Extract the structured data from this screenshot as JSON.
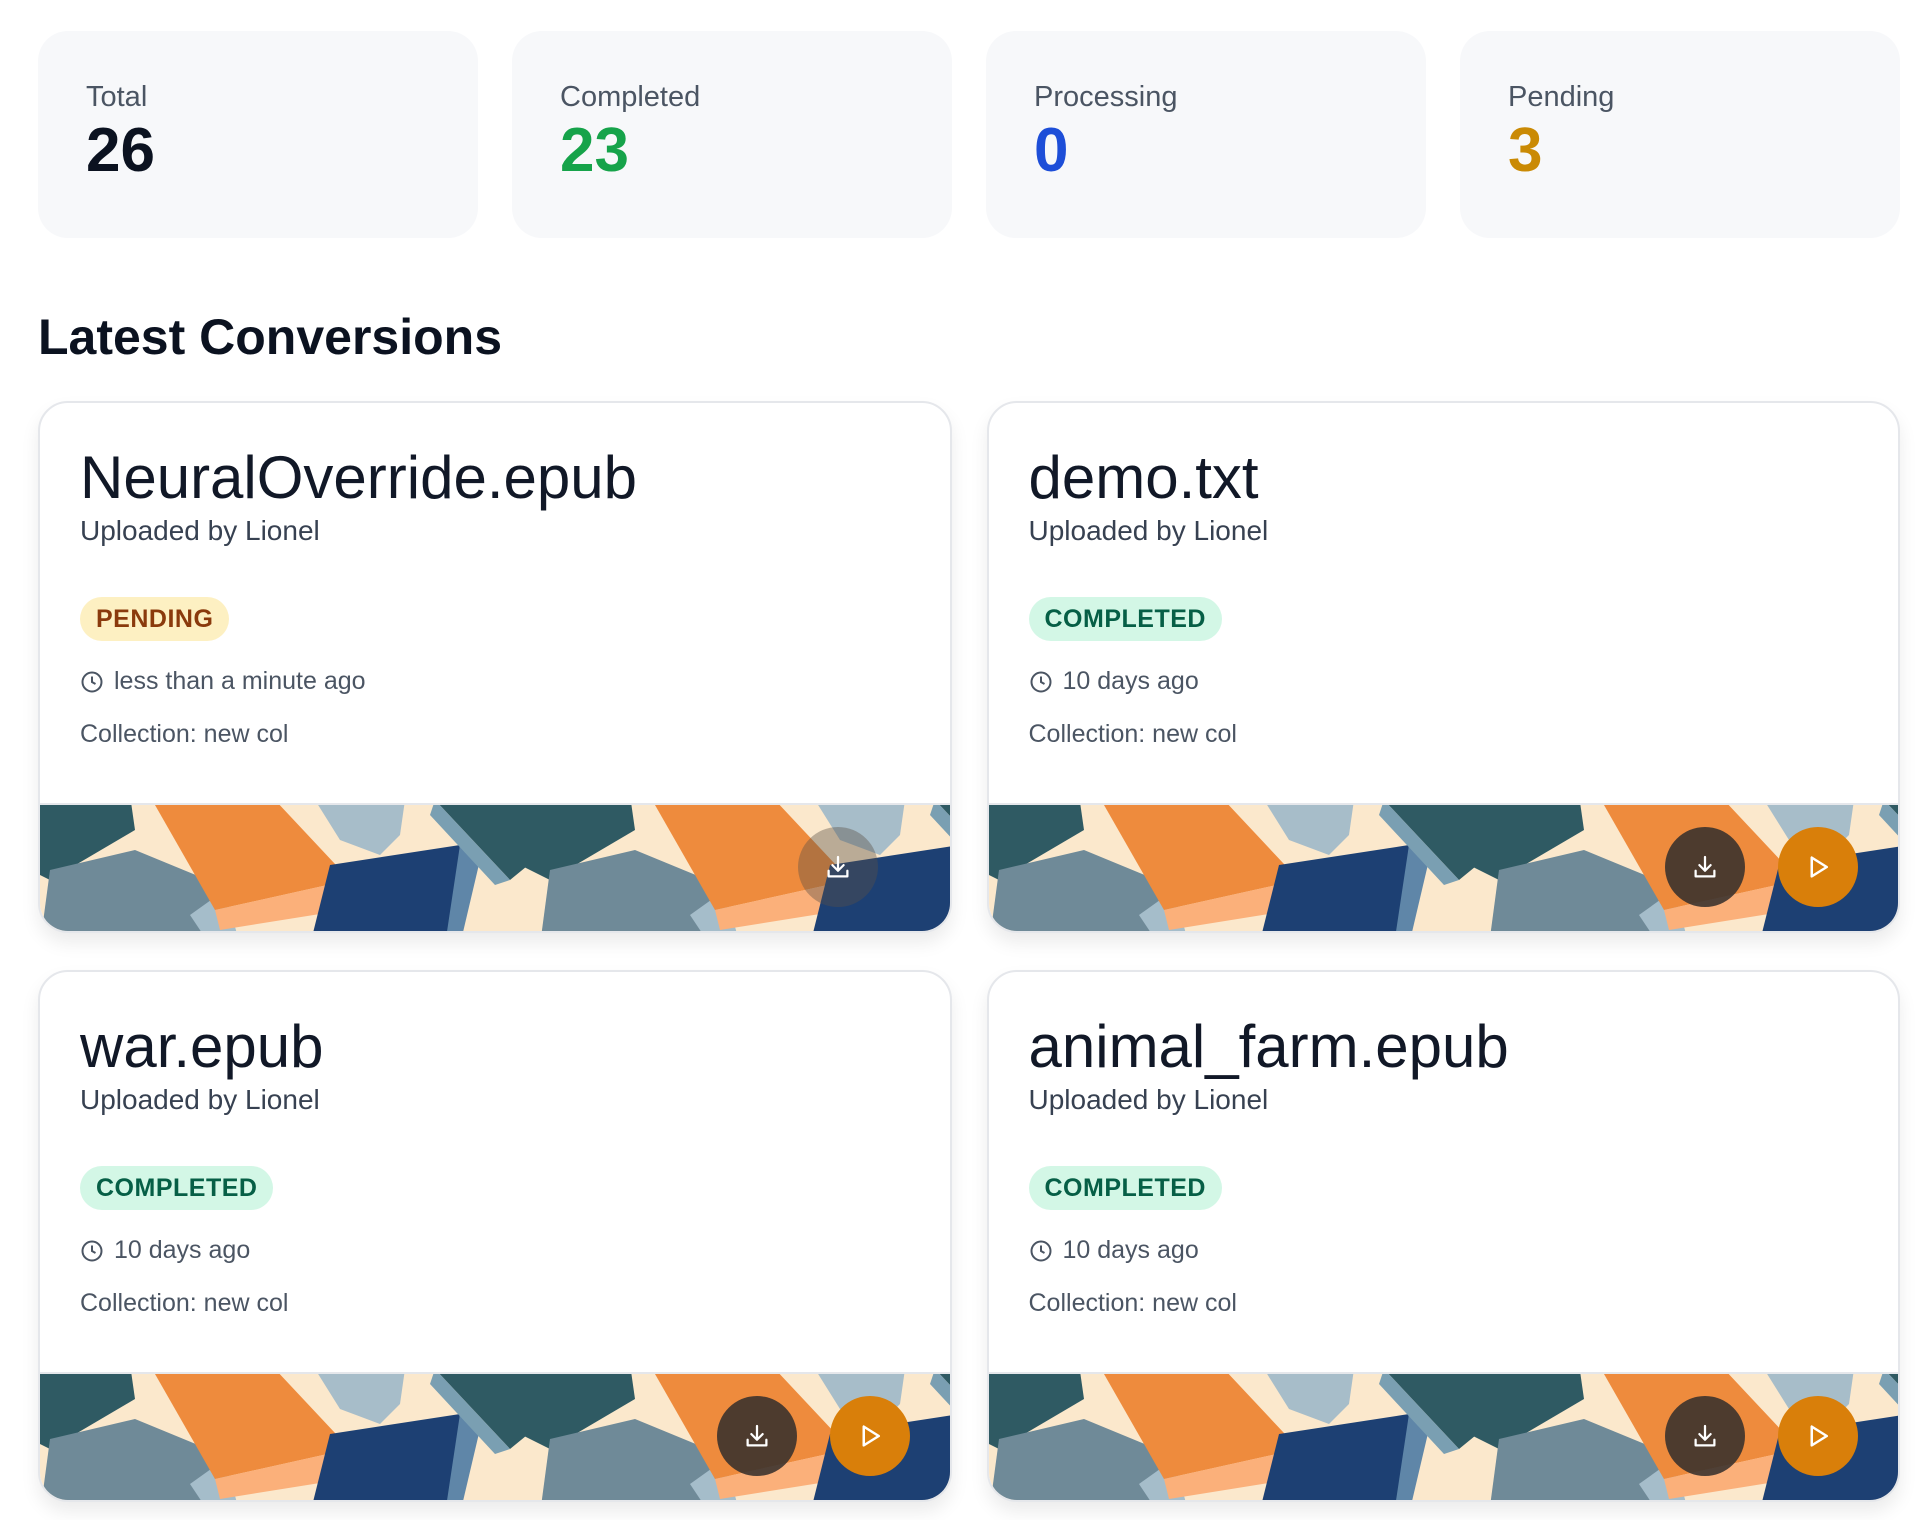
{
  "stats": [
    {
      "label": "Total",
      "value": "26",
      "color": "#0b1220"
    },
    {
      "label": "Completed",
      "value": "23",
      "color": "#16a34a"
    },
    {
      "label": "Processing",
      "value": "0",
      "color": "#1d4ed8"
    },
    {
      "label": "Pending",
      "value": "3",
      "color": "#ca8a04"
    }
  ],
  "section_title": "Latest Conversions",
  "conversions": [
    {
      "title": "NeuralOverride.epub",
      "uploaded": "Uploaded by Lionel",
      "status": "PENDING",
      "time": "less than a minute ago",
      "collection": "Collection: new col",
      "download_enabled": false,
      "playable": false
    },
    {
      "title": "demo.txt",
      "uploaded": "Uploaded by Lionel",
      "status": "COMPLETED",
      "time": "10 days ago",
      "collection": "Collection: new col",
      "download_enabled": true,
      "playable": true
    },
    {
      "title": "war.epub",
      "uploaded": "Uploaded by Lionel",
      "status": "COMPLETED",
      "time": "10 days ago",
      "collection": "Collection: new col",
      "download_enabled": true,
      "playable": true
    },
    {
      "title": "animal_farm.epub",
      "uploaded": "Uploaded by Lionel",
      "status": "COMPLETED",
      "time": "10 days ago",
      "collection": "Collection: new col",
      "download_enabled": true,
      "playable": true
    }
  ],
  "icons": {
    "clock": "clock-icon",
    "download": "download-icon",
    "play": "play-icon"
  }
}
